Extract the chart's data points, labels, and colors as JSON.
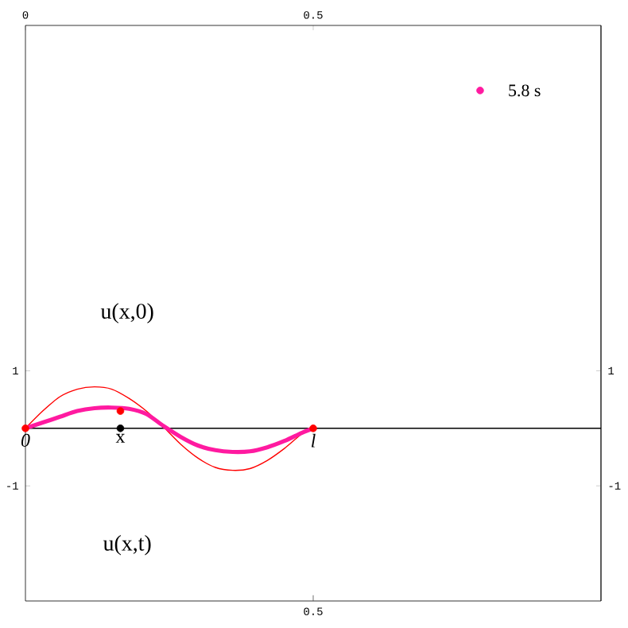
{
  "chart_data": {
    "type": "line",
    "xlim": [
      0,
      1
    ],
    "ylim": [
      -3,
      7
    ],
    "xticks": [
      0,
      0.5
    ],
    "yticks": [
      -1,
      1
    ],
    "y2lim": [
      -3,
      7
    ],
    "y2ticks": [
      -1,
      1
    ],
    "grid": false,
    "ref_lines": [
      {
        "axis": "y",
        "value": 0,
        "color": "#000000"
      }
    ],
    "annotations": [
      {
        "text": "0",
        "x": 0,
        "y": 0
      },
      {
        "text": "x",
        "x": 0.165,
        "y": 0
      },
      {
        "text": "l",
        "x": 0.5,
        "y": 0
      },
      "u(x,0)",
      "u(x,t)",
      "0.5"
    ],
    "series": [
      {
        "color": "#ff0000",
        "marker": "none",
        "x": [
          0,
          0.03,
          0.06,
          0.09,
          0.12,
          0.15,
          0.18,
          0.21,
          0.24,
          0.27,
          0.3,
          0.33,
          0.36,
          0.39,
          0.42,
          0.45,
          0.48,
          0.5
        ],
        "values": [
          0,
          0.3,
          0.55,
          0.68,
          0.72,
          0.68,
          0.52,
          0.3,
          0.02,
          -0.28,
          -0.52,
          -0.68,
          -0.73,
          -0.7,
          -0.56,
          -0.35,
          -0.1,
          0
        ]
      },
      {
        "color": "#ff1aa0",
        "marker": "none",
        "x": [
          0,
          0.03,
          0.06,
          0.09,
          0.12,
          0.15,
          0.18,
          0.21,
          0.24,
          0.27,
          0.3,
          0.33,
          0.36,
          0.39,
          0.42,
          0.45,
          0.48,
          0.5
        ],
        "values": [
          0,
          0.1,
          0.2,
          0.3,
          0.35,
          0.36,
          0.34,
          0.25,
          0.04,
          -0.15,
          -0.3,
          -0.38,
          -0.41,
          -0.4,
          -0.33,
          -0.22,
          -0.08,
          0
        ]
      },
      {
        "type": "scatter",
        "color": "#ff0000",
        "marker": "circle",
        "x": [
          0,
          0.165,
          0.5
        ],
        "values": [
          0,
          0.3,
          0
        ]
      },
      {
        "type": "scatter",
        "color": "#000000",
        "marker": "circle",
        "x": [
          0.165
        ],
        "values": [
          0
        ]
      },
      {
        "type": "scatter",
        "name": "5.8 s",
        "color": "#ff1aa0",
        "marker": "circle",
        "x": [
          0.79
        ],
        "values": [
          5.87
        ]
      }
    ]
  }
}
